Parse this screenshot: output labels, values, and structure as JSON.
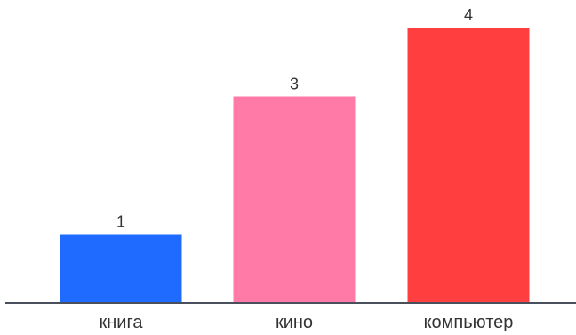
{
  "chart_data": {
    "type": "bar",
    "categories": [
      "книга",
      "кино",
      "компьютер"
    ],
    "values": [
      1,
      3,
      4
    ],
    "colors": [
      "#1f6bff",
      "#ff7aa6",
      "#ff3f3f"
    ],
    "axis_color": "#4a4f5c",
    "ylim": [
      0,
      4
    ],
    "grid": false,
    "legend": "none",
    "data_labels": true
  }
}
